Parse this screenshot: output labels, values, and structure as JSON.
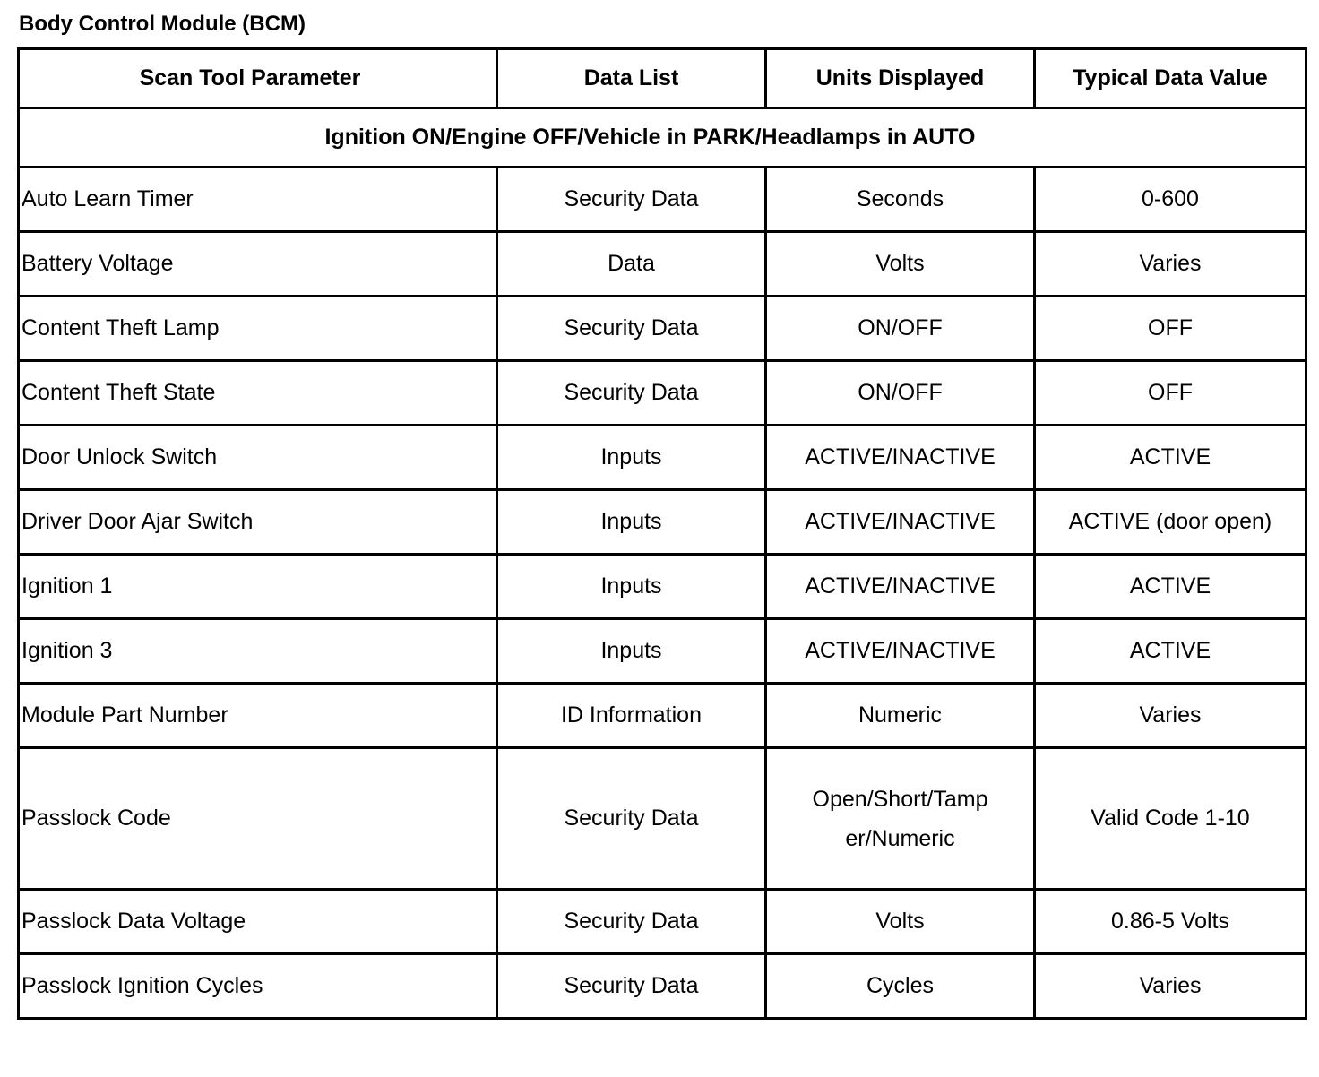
{
  "title": "Body Control Module (BCM)",
  "headers": [
    "Scan Tool Parameter",
    "Data List",
    "Units Displayed",
    "Typical Data Value"
  ],
  "section": "Ignition ON/Engine OFF/Vehicle in PARK/Headlamps in AUTO",
  "rows": [
    {
      "parameter": "Auto Learn Timer",
      "data_list": "Security Data",
      "units": "Seconds",
      "typical": "0-600"
    },
    {
      "parameter": "Battery Voltage",
      "data_list": "Data",
      "units": "Volts",
      "typical": "Varies"
    },
    {
      "parameter": "Content Theft Lamp",
      "data_list": "Security Data",
      "units": "ON/OFF",
      "typical": "OFF"
    },
    {
      "parameter": "Content Theft State",
      "data_list": "Security Data",
      "units": "ON/OFF",
      "typical": "OFF"
    },
    {
      "parameter": "Door Unlock Switch",
      "data_list": "Inputs",
      "units": "ACTIVE/INACTIVE",
      "typical": "ACTIVE"
    },
    {
      "parameter": "Driver Door Ajar Switch",
      "data_list": "Inputs",
      "units": "ACTIVE/INACTIVE",
      "typical": "ACTIVE (door open)"
    },
    {
      "parameter": "Ignition 1",
      "data_list": "Inputs",
      "units": "ACTIVE/INACTIVE",
      "typical": "ACTIVE"
    },
    {
      "parameter": "Ignition 3",
      "data_list": "Inputs",
      "units": "ACTIVE/INACTIVE",
      "typical": "ACTIVE"
    },
    {
      "parameter": "Module Part Number",
      "data_list": "ID Information",
      "units": "Numeric",
      "typical": "Varies"
    },
    {
      "parameter": "Passlock Code",
      "data_list": "Security Data",
      "units": "Open/Short/Tamp\ner/Numeric",
      "typical": "Valid Code 1-10"
    },
    {
      "parameter": "Passlock Data Voltage",
      "data_list": "Security Data",
      "units": "Volts",
      "typical": "0.86-5 Volts"
    },
    {
      "parameter": "Passlock Ignition Cycles",
      "data_list": "Security Data",
      "units": "Cycles",
      "typical": "Varies"
    }
  ]
}
